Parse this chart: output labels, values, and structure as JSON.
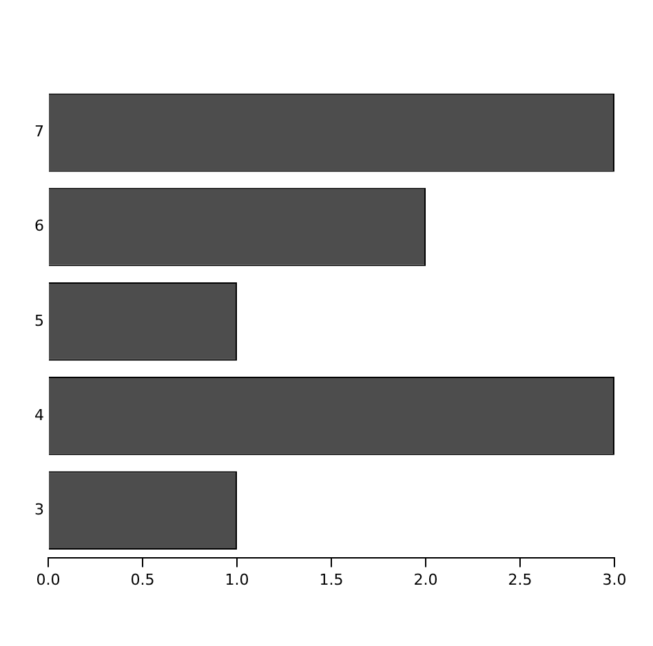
{
  "chart_data": {
    "type": "bar",
    "orientation": "horizontal",
    "categories": [
      "7",
      "6",
      "5",
      "4",
      "3"
    ],
    "values": [
      3,
      2,
      1,
      3,
      1
    ],
    "color": "#4d4d4d",
    "xlim": [
      0,
      3
    ],
    "xticks": [
      {
        "value": 0,
        "label": "0.0"
      },
      {
        "value": 0.5,
        "label": "0.5"
      },
      {
        "value": 1,
        "label": "1.0"
      },
      {
        "value": 1.5,
        "label": "1.5"
      },
      {
        "value": 2,
        "label": "2.0"
      },
      {
        "value": 2.5,
        "label": "2.5"
      },
      {
        "value": 3,
        "label": "3.0"
      }
    ],
    "grid": false,
    "legend": false
  }
}
